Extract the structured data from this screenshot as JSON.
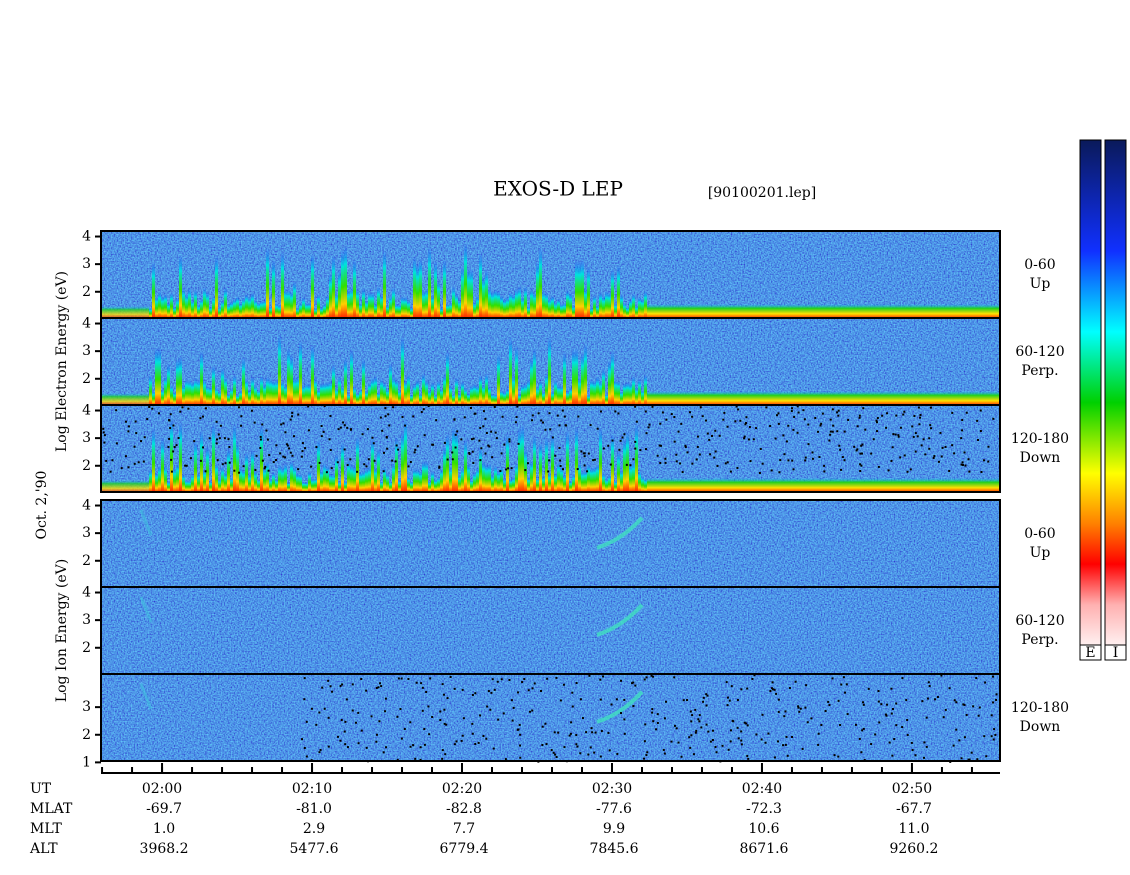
{
  "chart_data": {
    "type": "spectrogram",
    "title": "EXOS-D LEP",
    "file": "[90100201.lep]",
    "date_label": "Oct. 2,'90",
    "ylim": [
      1.05,
      4.2
    ],
    "xlim": [
      115.93,
      175.87
    ],
    "xticks": [
      {
        "value": 120,
        "label": "02:00"
      },
      {
        "value": 130,
        "label": "02:10"
      },
      {
        "value": 140,
        "label": "02:20"
      },
      {
        "value": 150,
        "label": "02:30"
      },
      {
        "value": 160,
        "label": "02:40"
      },
      {
        "value": 170,
        "label": "02:50"
      }
    ],
    "groups": [
      {
        "label": "Log Electron Energy (eV)",
        "species": "electron",
        "panels": [
          {
            "label": [
              "0-60",
              "Up"
            ],
            "yticks": [
              2,
              3,
              4
            ]
          },
          {
            "label": [
              "60-120",
              "Perp."
            ],
            "yticks": [
              2,
              3,
              4
            ]
          },
          {
            "label": [
              "120-180",
              "Down"
            ],
            "yticks": [
              2,
              3,
              4
            ]
          }
        ]
      },
      {
        "label": "Log Ion Energy (eV)",
        "species": "ion",
        "panels": [
          {
            "label": [
              "0-60",
              "Up"
            ],
            "yticks": [
              2,
              3,
              4
            ]
          },
          {
            "label": [
              "60-120",
              "Perp."
            ],
            "yticks": [
              2,
              3,
              4
            ]
          },
          {
            "label": [
              "120-180",
              "Down"
            ],
            "yticks": [
              1,
              2,
              3
            ]
          }
        ]
      }
    ],
    "colorbars": [
      "E",
      "I"
    ],
    "ephemeris": {
      "x_label": "UT",
      "labels": [
        "MLAT",
        "MLT",
        "ALT"
      ],
      "rows": [
        [
          "-69.7",
          "-81.0",
          "-82.8",
          "-77.6",
          "-72.3",
          "-67.7"
        ],
        [
          "1.0",
          "2.9",
          "7.7",
          "9.9",
          "10.6",
          "11.0"
        ],
        [
          "3968.2",
          "5477.6",
          "6779.4",
          "7845.6",
          "8671.6",
          "9260.2"
        ]
      ]
    }
  }
}
